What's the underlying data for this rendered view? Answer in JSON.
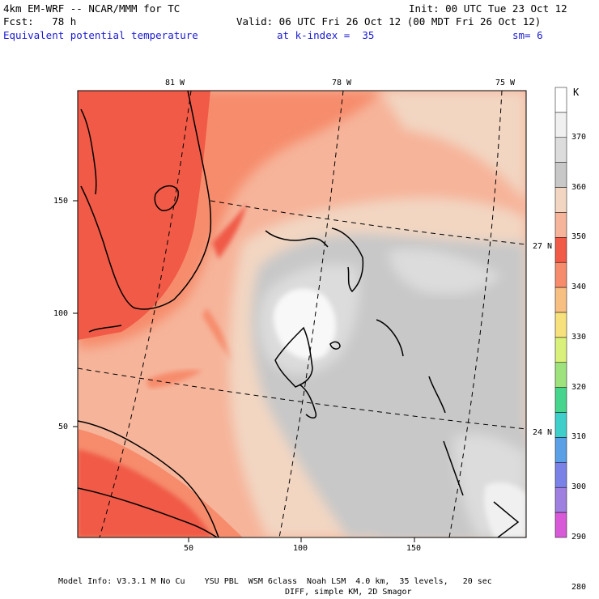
{
  "header": {
    "model_title": "4km EM-WRF -- NCAR/MMM for TC",
    "init_time": "Init: 00 UTC Tue 23 Oct 12",
    "forecast": "Fcst:   78 h",
    "valid_time": "Valid: 06 UTC Fri 26 Oct 12 (00 MDT Fri 26 Oct 12)",
    "field_name": "Equivalent potential temperature",
    "level": "at k-index =  35",
    "smoothing": "sm= 6"
  },
  "axes": {
    "top_labels": [
      "81 W",
      "78 W",
      "75 W"
    ],
    "right_labels": [
      "27 N",
      "24 N"
    ],
    "left_ticks": [
      "150",
      "100",
      "50"
    ],
    "bottom_ticks": [
      "50",
      "100",
      "150"
    ]
  },
  "colorbar": {
    "unit": "K",
    "levels": [
      "370",
      "360",
      "350",
      "340",
      "330",
      "320",
      "310",
      "300",
      "290",
      "280"
    ],
    "colors": [
      "#ffffff",
      "#f0f0f0",
      "#dcdcdc",
      "#c8c8c8",
      "#f2d6c2",
      "#f6b49a",
      "#f05a46",
      "#f68c6c",
      "#f7bf82",
      "#f7e17d",
      "#d9f07a",
      "#9de27c",
      "#47d48c",
      "#3fcfca",
      "#5aa0e6",
      "#7a82e8",
      "#9f7fe0",
      "#d85ad8"
    ]
  },
  "footer": {
    "line1": "Model Info: V3.3.1 M No Cu    YSU PBL  WSM 6class  Noah LSM  4.0 km,  35 levels,   20 sec",
    "line2": "DIFF, simple KM, 2D Smagor"
  }
}
